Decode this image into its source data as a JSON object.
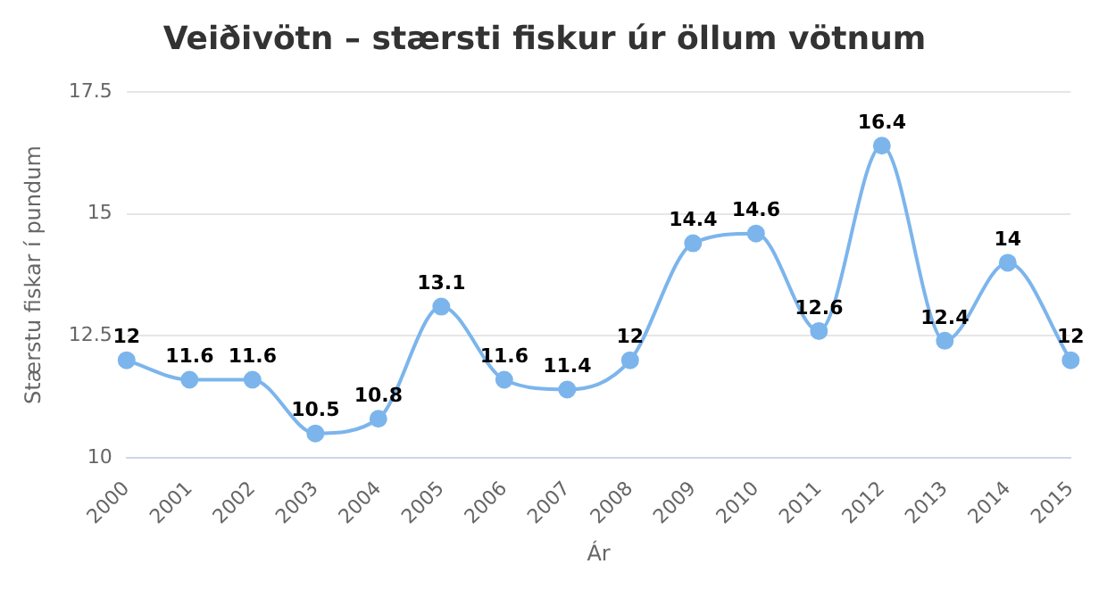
{
  "chart_data": {
    "type": "line",
    "title": "Veiðivötn – stærsti fiskur úr öllum vötnum",
    "xlabel": "Ár",
    "ylabel": "Stærstu fiskar í pundum",
    "categories": [
      "2000",
      "2001",
      "2002",
      "2003",
      "2004",
      "2005",
      "2006",
      "2007",
      "2008",
      "2009",
      "2010",
      "2011",
      "2012",
      "2013",
      "2014",
      "2015"
    ],
    "series": [
      {
        "color": "#7cb5ec",
        "values": [
          12,
          11.6,
          11.6,
          10.5,
          10.8,
          13.1,
          11.6,
          11.4,
          12,
          14.4,
          14.6,
          12.6,
          16.4,
          12.4,
          14,
          12
        ]
      }
    ],
    "ylim": [
      10,
      17.5
    ],
    "yticks": [
      10,
      12.5,
      15,
      17.5
    ],
    "grid": "y",
    "marker": "circle",
    "line_style": "solid",
    "data_labels": true,
    "legend": false
  }
}
